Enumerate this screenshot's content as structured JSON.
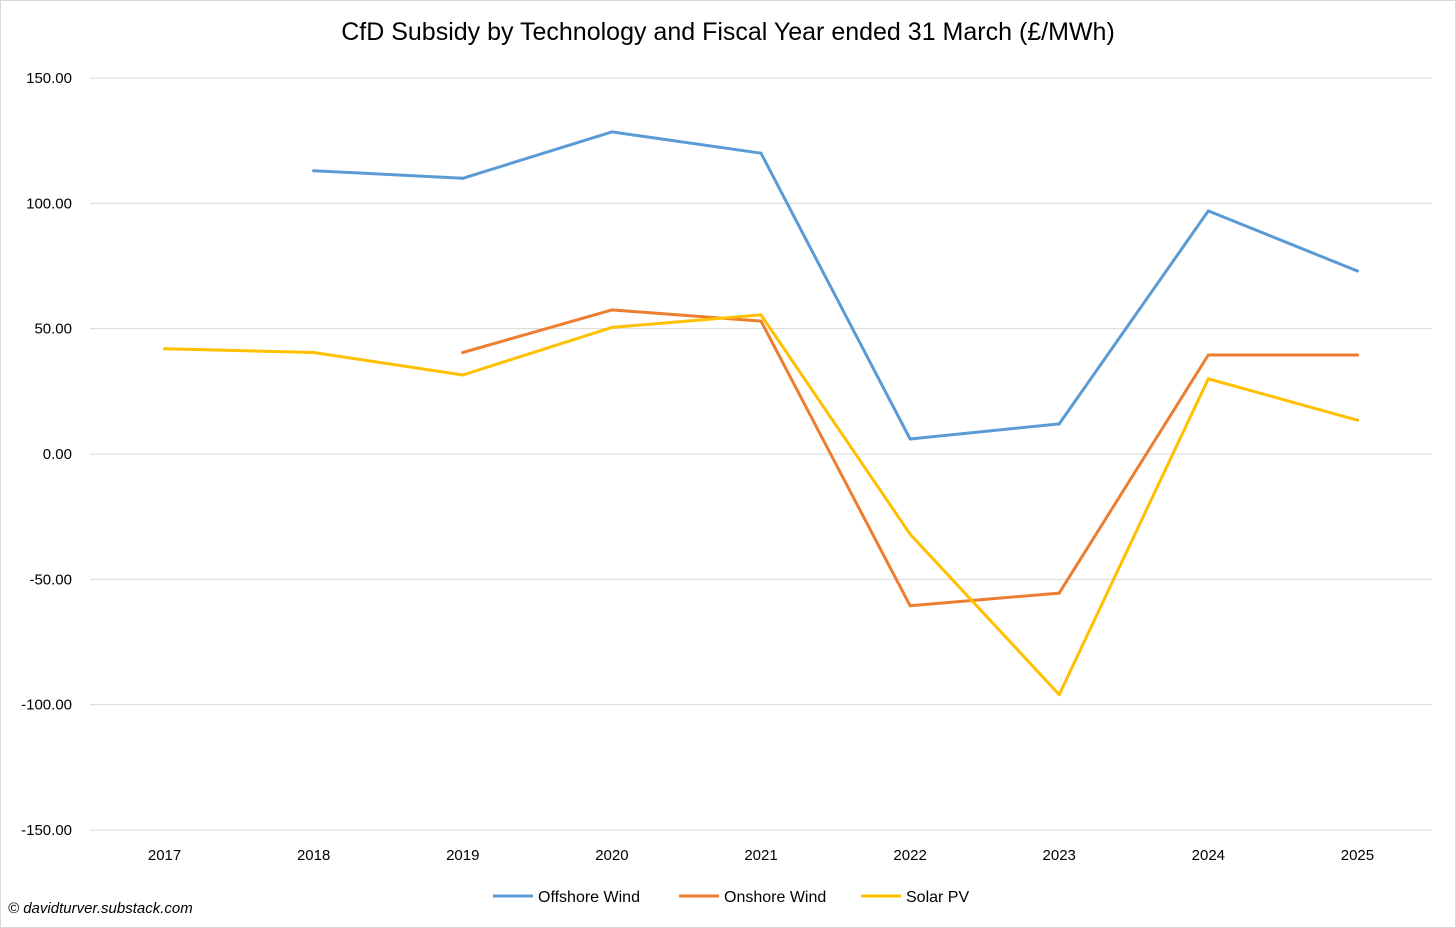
{
  "chart_data": {
    "type": "line",
    "title": "CfD Subsidy by Technology and Fiscal Year ended 31 March (£/MWh)",
    "xlabel": "",
    "ylabel": "",
    "categories": [
      "2017",
      "2018",
      "2019",
      "2020",
      "2021",
      "2022",
      "2023",
      "2024",
      "2025"
    ],
    "ylim": [
      -150,
      150
    ],
    "yticks": [
      150,
      100,
      50,
      0,
      -50,
      -100,
      -150
    ],
    "ytick_labels": [
      "150.00",
      "100.00",
      "50.00",
      "0.00",
      "-50.00",
      "-100.00",
      "-150.00"
    ],
    "grid": true,
    "legend_position": "bottom",
    "series": [
      {
        "name": "Offshore Wind",
        "color": "#5b9bd5",
        "values": [
          null,
          113.0,
          110.0,
          128.5,
          120.0,
          6.0,
          12.0,
          97.0,
          73.0
        ]
      },
      {
        "name": "Onshore Wind",
        "color": "#ed7d31",
        "values": [
          null,
          null,
          40.5,
          57.5,
          53.0,
          -60.5,
          -55.5,
          39.5,
          39.5
        ]
      },
      {
        "name": "Solar PV",
        "color": "#ffc000",
        "values": [
          42.0,
          40.5,
          31.5,
          50.5,
          55.5,
          -32.0,
          -96.0,
          30.0,
          13.5
        ]
      }
    ]
  },
  "credit": "© davidturver.substack.com"
}
